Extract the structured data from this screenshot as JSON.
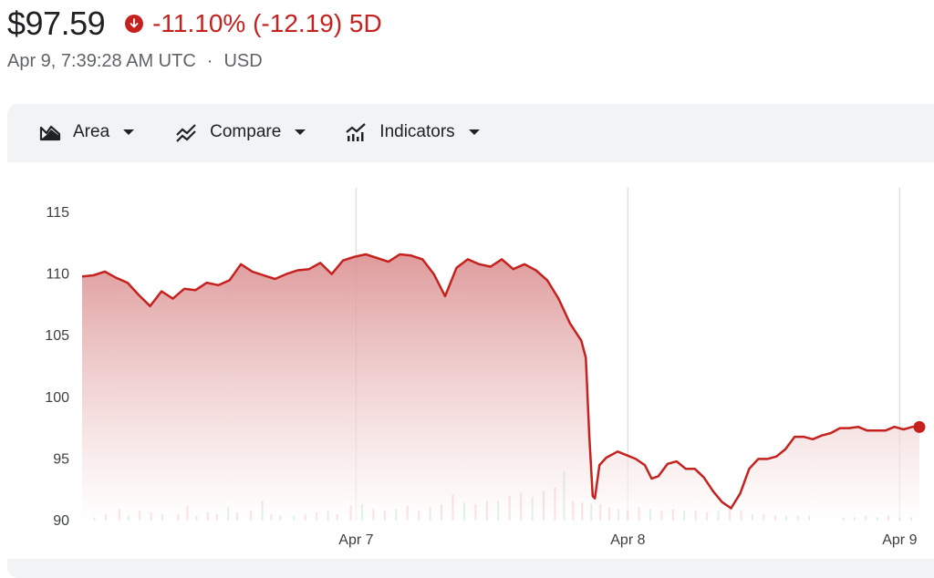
{
  "header": {
    "price": "$97.59",
    "change": "-11.10% (-12.19) 5D",
    "timestamp": "Apr 9, 7:39:28 AM UTC",
    "separator": "·",
    "currency": "USD"
  },
  "toolbar": {
    "area_label": "Area",
    "compare_label": "Compare",
    "indicators_label": "Indicators"
  },
  "colors": {
    "line": "#c5221f",
    "fill": "#e8a3a1",
    "volume_up": "#81c995",
    "volume_down": "#f28b82",
    "grid": "#e0e0e0"
  },
  "icons": [
    "arrow-down-circle-icon",
    "area-chart-icon",
    "compare-icon",
    "indicators-icon",
    "caret-down-icon"
  ],
  "chart_data": {
    "type": "area",
    "x_tick_labels": [
      "Apr 7",
      "Apr 8",
      "Apr 9"
    ],
    "y_ticks": [
      90,
      95,
      100,
      105,
      110,
      115
    ],
    "ylim": [
      90,
      117
    ],
    "grid": "vertical",
    "series": [
      {
        "points": [
          [
            0,
            109.8
          ],
          [
            0.5,
            109.9
          ],
          [
            1,
            110.2
          ],
          [
            1.5,
            109.7
          ],
          [
            2,
            109.3
          ],
          [
            2.5,
            108.3
          ],
          [
            3,
            107.4
          ],
          [
            3.5,
            108.6
          ],
          [
            4,
            108.0
          ],
          [
            4.5,
            108.8
          ],
          [
            5,
            108.7
          ],
          [
            5.5,
            109.3
          ],
          [
            6,
            109.1
          ],
          [
            6.5,
            109.5
          ],
          [
            7,
            110.8
          ],
          [
            7.5,
            110.2
          ],
          [
            8,
            109.9
          ],
          [
            8.5,
            109.6
          ],
          [
            9,
            110.0
          ],
          [
            9.5,
            110.3
          ],
          [
            10,
            110.4
          ],
          [
            10.5,
            110.9
          ],
          [
            11,
            110.0
          ],
          [
            11.5,
            111.1
          ],
          [
            12,
            111.4
          ],
          [
            12.5,
            111.6
          ],
          [
            13,
            111.3
          ],
          [
            13.5,
            111.0
          ],
          [
            14,
            111.6
          ],
          [
            14.5,
            111.5
          ],
          [
            15,
            111.2
          ],
          [
            15.5,
            110.0
          ],
          [
            16,
            108.2
          ],
          [
            16.5,
            110.5
          ],
          [
            17,
            111.2
          ],
          [
            17.5,
            110.8
          ],
          [
            18,
            110.6
          ],
          [
            18.5,
            111.2
          ],
          [
            19,
            110.4
          ],
          [
            19.5,
            110.8
          ],
          [
            20,
            110.3
          ],
          [
            20.5,
            109.5
          ],
          [
            21,
            108.0
          ],
          [
            21.5,
            106.0
          ],
          [
            22,
            104.6
          ],
          [
            22.2,
            103.2
          ],
          [
            22.35,
            97.0
          ],
          [
            22.5,
            92.0
          ],
          [
            22.6,
            91.8
          ],
          [
            22.8,
            94.5
          ],
          [
            23.1,
            95.1
          ],
          [
            23.6,
            95.6
          ],
          [
            24.0,
            95.3
          ],
          [
            24.4,
            95.0
          ],
          [
            24.8,
            94.5
          ],
          [
            25.1,
            93.4
          ],
          [
            25.4,
            93.6
          ],
          [
            25.8,
            94.6
          ],
          [
            26.2,
            94.8
          ],
          [
            26.6,
            94.2
          ],
          [
            27.0,
            94.2
          ],
          [
            27.4,
            93.5
          ],
          [
            27.8,
            92.4
          ],
          [
            28.2,
            91.5
          ],
          [
            28.6,
            91.0
          ],
          [
            29.0,
            92.2
          ],
          [
            29.4,
            94.2
          ],
          [
            29.8,
            95.0
          ],
          [
            30.2,
            95.0
          ],
          [
            30.6,
            95.2
          ],
          [
            31.0,
            95.8
          ],
          [
            31.4,
            96.8
          ],
          [
            31.8,
            96.8
          ],
          [
            32.2,
            96.6
          ],
          [
            32.6,
            96.9
          ],
          [
            33.0,
            97.1
          ],
          [
            33.4,
            97.5
          ],
          [
            33.8,
            97.5
          ],
          [
            34.2,
            97.6
          ],
          [
            34.6,
            97.3
          ],
          [
            35.0,
            97.3
          ],
          [
            35.4,
            97.3
          ],
          [
            35.8,
            97.6
          ],
          [
            36.2,
            97.4
          ],
          [
            36.6,
            97.6
          ],
          [
            36.9,
            97.59
          ]
        ],
        "volume": [
          [
            0.5,
            0.2
          ],
          [
            1.0,
            0.4
          ],
          [
            1.6,
            0.7
          ],
          [
            2.0,
            0.3
          ],
          [
            2.5,
            0.6
          ],
          [
            3.0,
            0.5
          ],
          [
            3.5,
            0.4
          ],
          [
            4.2,
            0.4
          ],
          [
            4.6,
            0.9
          ],
          [
            5.0,
            0.3
          ],
          [
            5.5,
            0.5
          ],
          [
            5.9,
            0.4
          ],
          [
            6.4,
            0.8
          ],
          [
            6.8,
            0.5
          ],
          [
            7.4,
            0.6
          ],
          [
            7.9,
            1.2
          ],
          [
            8.3,
            0.4
          ],
          [
            8.7,
            0.3
          ],
          [
            9.3,
            0.3
          ],
          [
            9.8,
            0.4
          ],
          [
            10.3,
            0.5
          ],
          [
            10.8,
            0.6
          ],
          [
            11.2,
            0.4
          ],
          [
            11.8,
            0.9
          ],
          [
            12.3,
            1.0
          ],
          [
            12.8,
            0.7
          ],
          [
            13.3,
            0.6
          ],
          [
            13.8,
            0.7
          ],
          [
            14.3,
            0.9
          ],
          [
            14.8,
            0.6
          ],
          [
            15.3,
            0.8
          ],
          [
            15.8,
            1.0
          ],
          [
            16.3,
            1.6
          ],
          [
            16.8,
            1.1
          ],
          [
            17.3,
            1.0
          ],
          [
            17.8,
            1.2
          ],
          [
            18.3,
            1.2
          ],
          [
            18.8,
            1.5
          ],
          [
            19.3,
            1.7
          ],
          [
            19.8,
            1.4
          ],
          [
            20.3,
            1.8
          ],
          [
            20.8,
            2.0
          ],
          [
            21.2,
            3.0
          ],
          [
            21.6,
            1.2
          ],
          [
            22.0,
            1.1
          ],
          [
            22.4,
            1.0
          ],
          [
            22.8,
            1.0
          ],
          [
            23.2,
            0.8
          ],
          [
            23.6,
            0.7
          ],
          [
            24.0,
            0.6
          ],
          [
            24.5,
            0.8
          ],
          [
            25.0,
            0.7
          ],
          [
            25.5,
            0.6
          ],
          [
            26.0,
            0.7
          ],
          [
            26.5,
            0.6
          ],
          [
            27.0,
            0.6
          ],
          [
            27.5,
            0.5
          ],
          [
            28.0,
            0.6
          ],
          [
            28.5,
            0.7
          ],
          [
            29.0,
            0.6
          ],
          [
            29.5,
            0.4
          ],
          [
            30.0,
            0.4
          ],
          [
            30.5,
            0.3
          ],
          [
            31.0,
            0.3
          ],
          [
            31.5,
            0.3
          ],
          [
            32.0,
            0.3
          ],
          [
            33.5,
            0.2
          ],
          [
            34.0,
            0.2
          ],
          [
            34.5,
            0.3
          ],
          [
            35.0,
            0.2
          ],
          [
            35.5,
            0.3
          ],
          [
            36.0,
            0.2
          ],
          [
            36.5,
            0.2
          ]
        ]
      }
    ]
  }
}
